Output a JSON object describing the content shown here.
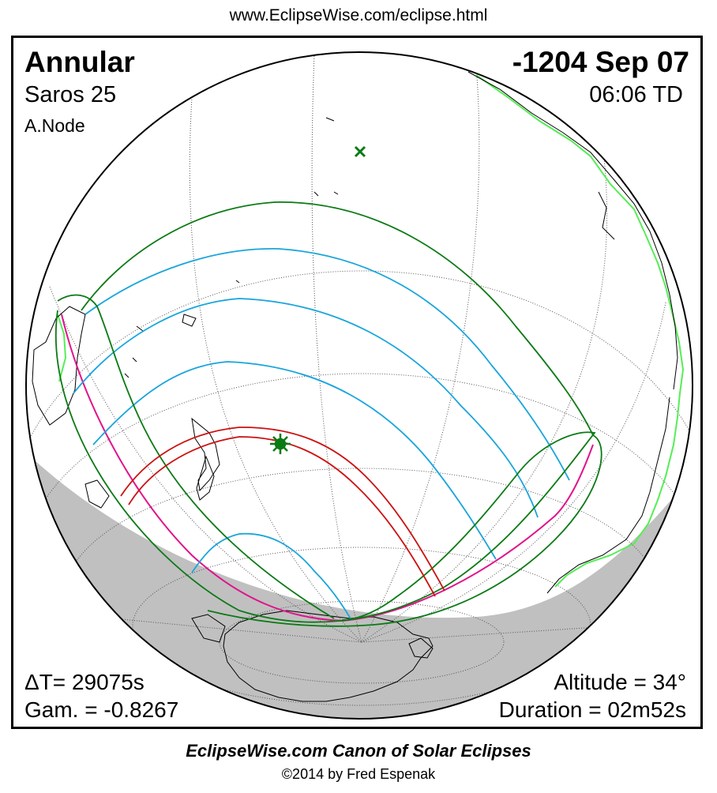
{
  "header": {
    "url": "www.EclipseWise.com/eclipse.html"
  },
  "eclipse": {
    "type": "Annular",
    "date": "-1204 Sep 07",
    "saros": "Saros  25",
    "time": "06:06 TD",
    "node": "A.Node",
    "delta_t": "ΔT=  29075s",
    "gamma": "Gam. = -0.8267",
    "altitude": "Altitude = 34°",
    "duration": "Duration = 02m52s"
  },
  "footer": {
    "canon": "EclipseWise.com Canon of Solar Eclipses",
    "copyright": "©2014 by Fred Espenak"
  },
  "colors": {
    "penumbra_limit": "#0a7a14",
    "umbra_path": "#cc1111",
    "time_lines": "#19a5dc",
    "rise_set_curve": "#e0148c",
    "night_shade": "#c0c0c0",
    "coastline_highlight": "#55ee55",
    "coastline": "#000000",
    "graticule": "#555555"
  },
  "icons": {
    "subsolar_point": "cross-icon",
    "greatest_eclipse": "star-marker-icon"
  }
}
